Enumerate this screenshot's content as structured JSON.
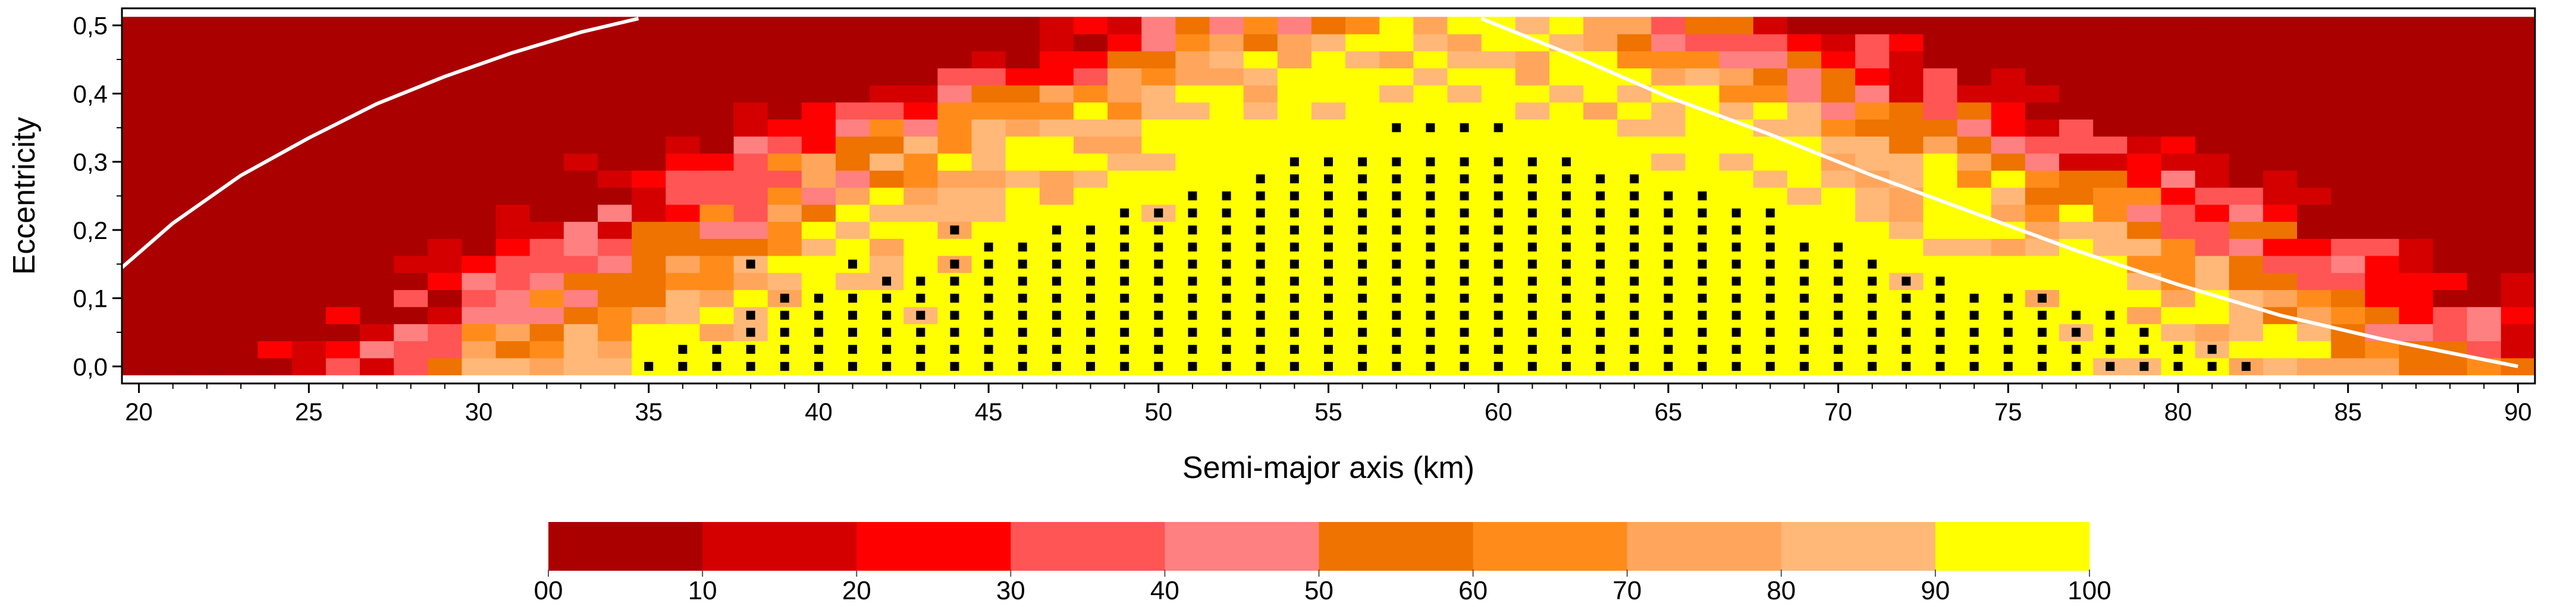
{
  "chart_data": {
    "type": "heatmap",
    "title": "",
    "xlabel": "Semi-major axis (km)",
    "ylabel": "Eccentricity",
    "xlim": [
      19.5,
      90.5
    ],
    "ylim": [
      -0.025,
      0.525
    ],
    "x_ticks": [
      20,
      25,
      30,
      35,
      40,
      45,
      50,
      55,
      60,
      65,
      70,
      75,
      80,
      85,
      90
    ],
    "x_tick_labels": [
      "20",
      "25",
      "30",
      "35",
      "40",
      "45",
      "50",
      "55",
      "60",
      "65",
      "70",
      "75",
      "80",
      "85",
      "90"
    ],
    "y_ticks": [
      0.0,
      0.1,
      0.2,
      0.3,
      0.4,
      0.5
    ],
    "y_tick_labels": [
      "0,0",
      "0,1",
      "0,2",
      "0,3",
      "0,4",
      "0,5"
    ],
    "grid_x": {
      "start": 19.5,
      "step": 1,
      "count": 71
    },
    "grid_y": {
      "start": 0.0,
      "step": 0.025,
      "count": 21
    },
    "band_colors": [
      "#aa0000",
      "#d40000",
      "#ff0000",
      "#ff5555",
      "#ff8080",
      "#ee7300",
      "#ff8c1a",
      "#ffa65c",
      "#ffb878",
      "#ffff00"
    ],
    "colorbar": {
      "labels": [
        "00",
        "10",
        "20",
        "30",
        "40",
        "50",
        "60",
        "70",
        "80",
        "90",
        "100"
      ]
    },
    "stable_rows": [
      {
        "e": 0.0,
        "x_from": 35,
        "x_to": 82
      },
      {
        "e": 0.025,
        "x_from": 36,
        "x_to": 81
      },
      {
        "e": 0.05,
        "x_from": 38,
        "x_to": 79
      },
      {
        "e": 0.075,
        "x_from": 38,
        "x_to": 78
      },
      {
        "e": 0.1,
        "x_from": 39,
        "x_to": 76
      },
      {
        "e": 0.125,
        "x_from": 42,
        "x_to": 73
      },
      {
        "e": 0.15,
        "x_from": 44,
        "x_to": 71
      },
      {
        "e": 0.175,
        "x_from": 45,
        "x_to": 70
      },
      {
        "e": 0.2,
        "x_from": 47,
        "x_to": 68
      },
      {
        "e": 0.225,
        "x_from": 49,
        "x_to": 68
      },
      {
        "e": 0.25,
        "x_from": 51,
        "x_to": 66
      },
      {
        "e": 0.275,
        "x_from": 53,
        "x_to": 64
      },
      {
        "e": 0.3,
        "x_from": 54,
        "x_to": 62
      },
      {
        "e": 0.35,
        "x_from": 57,
        "x_to": 60
      }
    ],
    "stable_extra": [
      [
        44,
        0.2
      ],
      [
        38,
        0.15
      ],
      [
        41,
        0.15
      ]
    ],
    "curves": [
      {
        "name": "left-curve",
        "color": "#ffffff",
        "x": [
          19.5,
          21,
          23,
          25,
          27,
          29,
          31,
          33,
          34.7
        ],
        "y": [
          0.145,
          0.21,
          0.28,
          0.335,
          0.385,
          0.425,
          0.46,
          0.49,
          0.51
        ]
      },
      {
        "name": "right-curve",
        "color": "#ffffff",
        "x": [
          59.5,
          62,
          65,
          68,
          71,
          74,
          77,
          80,
          83,
          86,
          88,
          90
        ],
        "y": [
          0.51,
          0.46,
          0.395,
          0.34,
          0.28,
          0.225,
          0.17,
          0.12,
          0.075,
          0.04,
          0.02,
          0.0
        ]
      }
    ]
  }
}
